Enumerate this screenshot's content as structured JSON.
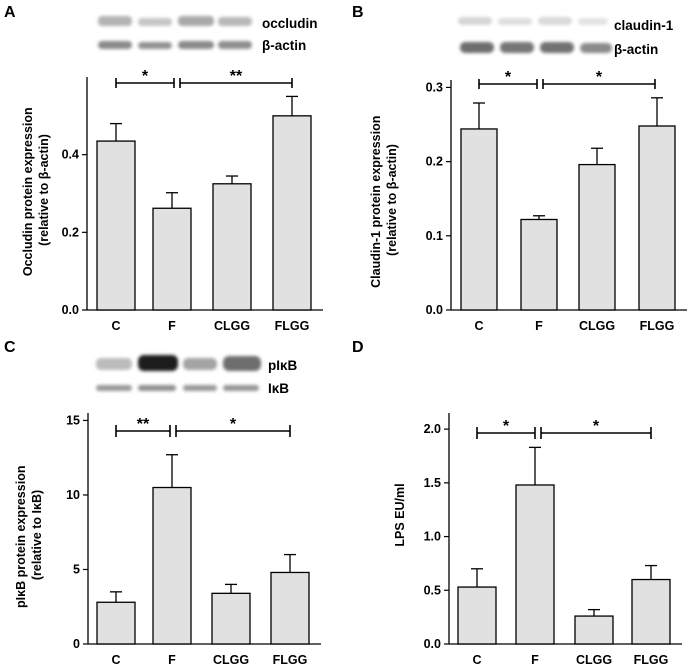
{
  "figure": {
    "colors": {
      "bar_fill": "#e1e1e1",
      "stroke": "#000000",
      "background": "#ffffff"
    }
  },
  "chart_data": [
    {
      "panel": "A",
      "type": "bar",
      "categories": [
        "C",
        "F",
        "CLGG",
        "FLGG"
      ],
      "values": [
        0.435,
        0.262,
        0.325,
        0.5
      ],
      "errors": [
        0.045,
        0.04,
        0.02,
        0.05
      ],
      "ylim": [
        0.0,
        0.6
      ],
      "yticks": [
        0.0,
        0.2,
        0.4
      ],
      "ytick_labels": [
        "0.0",
        "0.2",
        "0.4"
      ],
      "ylabel": "Occludin protein expression",
      "ylabel2": "(relative to β-actin)",
      "xlabel": "",
      "significance": [
        {
          "from": "C",
          "to": "F",
          "label": "*"
        },
        {
          "from": "F",
          "to": "FLGG",
          "label": "**"
        }
      ],
      "blot_labels": [
        "occludin",
        "β-actin"
      ]
    },
    {
      "panel": "B",
      "type": "bar",
      "categories": [
        "C",
        "F",
        "CLGG",
        "FLGG"
      ],
      "values": [
        0.244,
        0.122,
        0.196,
        0.248
      ],
      "errors": [
        0.035,
        0.005,
        0.022,
        0.038
      ],
      "ylim": [
        0.0,
        0.31
      ],
      "yticks": [
        0.0,
        0.1,
        0.2,
        0.3
      ],
      "ytick_labels": [
        "0.0",
        "0.1",
        "0.2",
        "0.3"
      ],
      "ylabel": "Claudin-1 protein expression",
      "ylabel2": "(relative to β-actin)",
      "xlabel": "",
      "significance": [
        {
          "from": "C",
          "to": "F",
          "label": "*"
        },
        {
          "from": "F",
          "to": "FLGG",
          "label": "*"
        }
      ],
      "blot_labels": [
        "claudin-1",
        "β-actin"
      ]
    },
    {
      "panel": "C",
      "type": "bar",
      "categories": [
        "C",
        "F",
        "CLGG",
        "FLGG"
      ],
      "values": [
        2.8,
        10.5,
        3.4,
        4.8
      ],
      "errors": [
        0.7,
        2.2,
        0.6,
        1.2
      ],
      "ylim": [
        0,
        15.5
      ],
      "yticks": [
        0,
        5,
        10,
        15
      ],
      "ytick_labels": [
        "0",
        "5",
        "10",
        "15"
      ],
      "ylabel": "pIκB protein expression",
      "ylabel2": "(relative to IκB)",
      "xlabel": "",
      "significance": [
        {
          "from": "C",
          "to": "F",
          "label": "**"
        },
        {
          "from": "F",
          "to": "FLGG",
          "label": "*"
        }
      ],
      "blot_labels": [
        "pIκB",
        "IκB"
      ]
    },
    {
      "panel": "D",
      "type": "bar",
      "categories": [
        "C",
        "F",
        "CLGG",
        "FLGG"
      ],
      "values": [
        0.53,
        1.48,
        0.26,
        0.6
      ],
      "errors": [
        0.17,
        0.35,
        0.06,
        0.13
      ],
      "ylim": [
        0.0,
        2.15
      ],
      "yticks": [
        0.0,
        0.5,
        1.0,
        1.5,
        2.0
      ],
      "ytick_labels": [
        "0.0",
        "0.5",
        "1.0",
        "1.5",
        "2.0"
      ],
      "ylabel": "LPS EU/ml",
      "ylabel2": "",
      "xlabel": "",
      "significance": [
        {
          "from": "C",
          "to": "F",
          "label": "*"
        },
        {
          "from": "F",
          "to": "FLGG",
          "label": "*"
        }
      ],
      "blot_labels": []
    }
  ]
}
